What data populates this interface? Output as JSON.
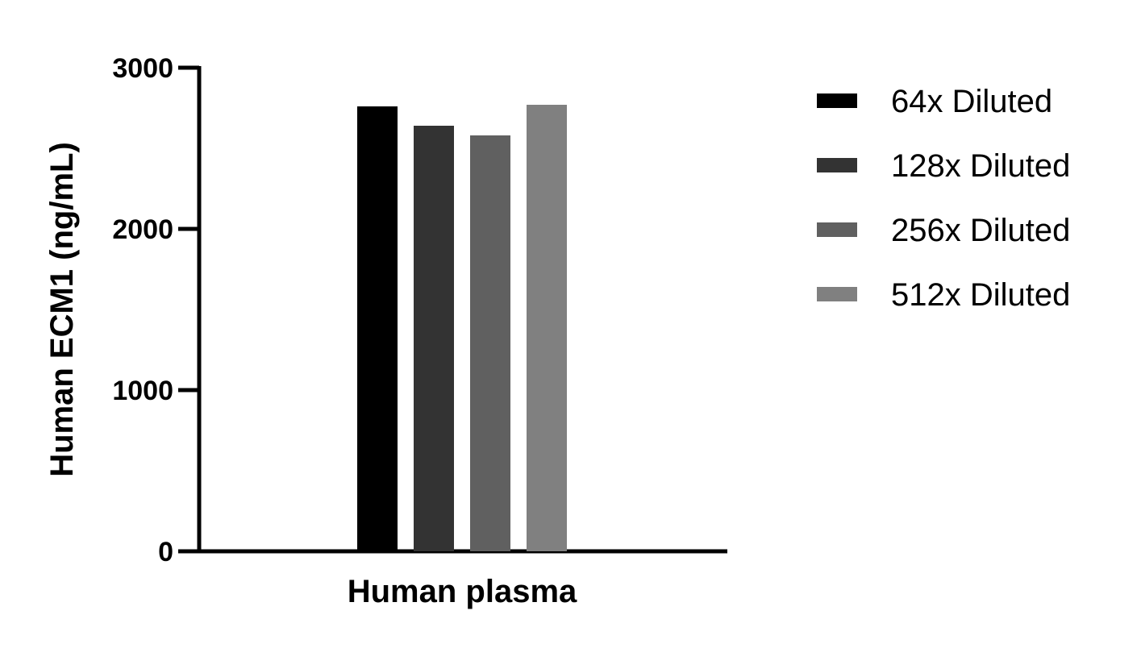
{
  "chart_data": {
    "type": "bar",
    "categories": [
      "Human plasma"
    ],
    "series": [
      {
        "name": "64x Diluted",
        "values": [
          2760
        ],
        "color": "#000000"
      },
      {
        "name": "128x Diluted",
        "values": [
          2640
        ],
        "color": "#333333"
      },
      {
        "name": "256x Diluted",
        "values": [
          2580
        ],
        "color": "#606060"
      },
      {
        "name": "512x Diluted",
        "values": [
          2770
        ],
        "color": "#808080"
      }
    ],
    "xlabel": "Human plasma",
    "ylabel": "Human ECM1 (ng/mL)",
    "ylim": [
      0,
      3000
    ],
    "yticks": [
      "0",
      "1000",
      "2000",
      "3000"
    ],
    "ytick_values": [
      0,
      1000,
      2000,
      3000
    ],
    "grid": false,
    "legend_position": "right"
  }
}
